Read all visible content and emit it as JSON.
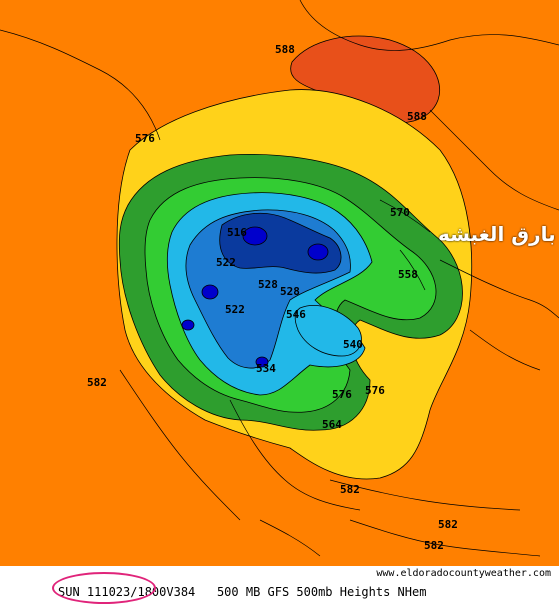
{
  "map": {
    "colors": {
      "background": "#ff8000",
      "band_588": "#e8501a",
      "band_576": "#ffd21a",
      "band_564": "#2e9e2e",
      "band_552": "#33cc33",
      "band_540": "#22b8e8",
      "band_528": "#1e7cd2",
      "band_516": "#0a3a9e",
      "coast": "#000000"
    },
    "contour_labels": [
      "588",
      "588",
      "576",
      "576",
      "576",
      "582",
      "582",
      "582",
      "582",
      "516",
      "522",
      "522",
      "528",
      "528",
      "534",
      "540",
      "546",
      "558",
      "564",
      "570"
    ]
  },
  "overlay": {
    "text": "بارق الغبشه"
  },
  "footer": {
    "site": "www.eldoradocountyweather.com",
    "info": "SUN 111023/1800V384   500 MB GFS 500mb Heights NHem"
  }
}
